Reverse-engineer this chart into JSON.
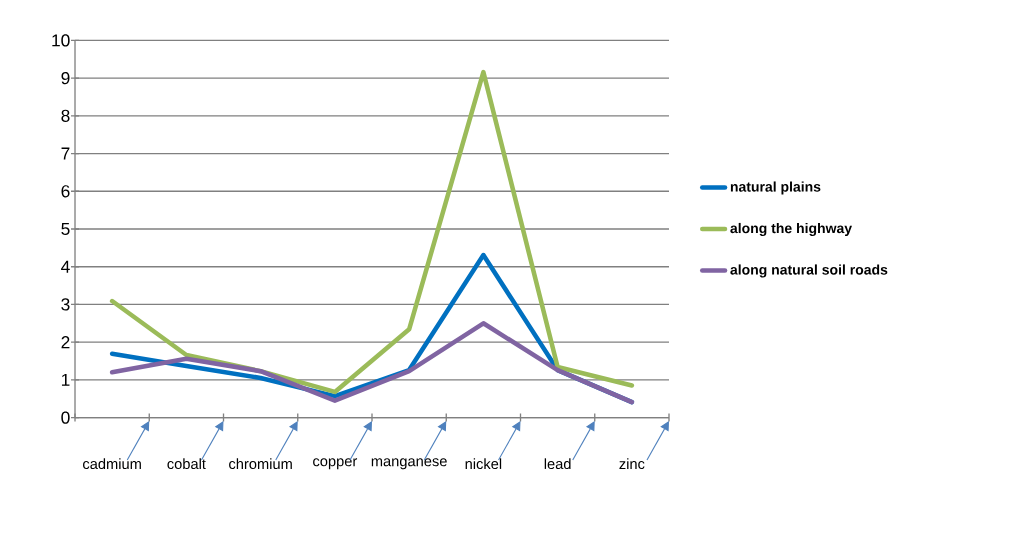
{
  "chart_data": {
    "type": "line",
    "categories": [
      "cadmium",
      "cobalt",
      "chromium",
      "copper",
      "manganese",
      "nickel",
      "lead",
      "zinc"
    ],
    "series": [
      {
        "name": "natural plains",
        "color": "#0070c0",
        "values": [
          1.69,
          1.37,
          1.05,
          0.57,
          1.26,
          4.31,
          1.26,
          0.41
        ]
      },
      {
        "name": "along the highway",
        "color": "#9bbb59",
        "values": [
          3.09,
          1.66,
          1.23,
          0.68,
          2.34,
          9.16,
          1.34,
          0.85
        ]
      },
      {
        "name": "along natural soil roads",
        "color": "#8064a2",
        "values": [
          1.2,
          1.56,
          1.23,
          0.45,
          1.23,
          2.5,
          1.26,
          0.41
        ]
      }
    ],
    "ylim": [
      0,
      10
    ],
    "yticks": [
      0,
      1,
      2,
      3,
      4,
      5,
      6,
      7,
      8,
      9,
      10
    ],
    "grid": "y",
    "legend": "right",
    "marker": "none",
    "line_style": "solid"
  }
}
